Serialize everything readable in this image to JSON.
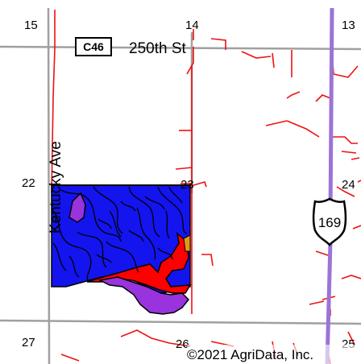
{
  "map": {
    "section_labels": [
      "15",
      "14",
      "13",
      "22",
      "23",
      "24",
      "27",
      "26",
      "25"
    ],
    "roads": {
      "street_name": "250th St",
      "avenue_name": "Kentucky Ave",
      "county_route": "C46",
      "us_highway": "169"
    },
    "copyright": "©2021 AgriData, Inc.",
    "colors": {
      "road_gray": "#9a9a9a",
      "stream_red": "#ee1111",
      "highway_purple": "#9b74d6",
      "soil_blue": "#1414ee",
      "soil_red": "#ff0000",
      "soil_purple": "#9933dd",
      "soil_orange": "#e09a18",
      "field_border": "#000000"
    }
  }
}
